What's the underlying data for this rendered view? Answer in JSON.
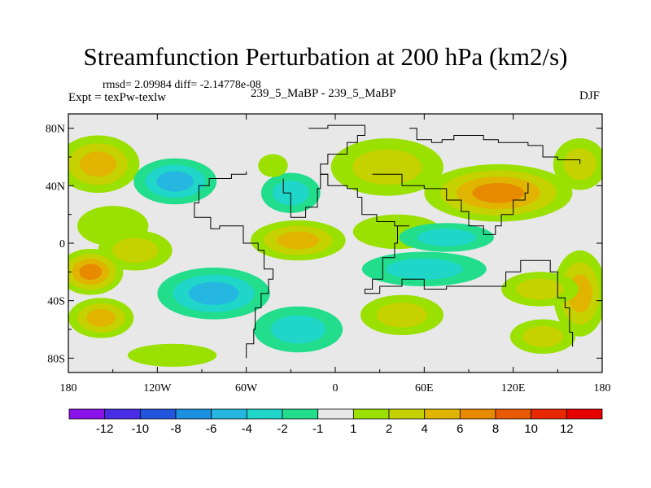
{
  "chart_data": {
    "type": "heatmap",
    "title": "Streamfunction Perturbation at 200 hPa (km2/s)",
    "subtitle_stats": "rmsd= 2.09984 diff= -2.14778e-08",
    "left_label": "Expt = texPw-texlw",
    "center_label": "239_5_MaBP - 239_5_MaBP",
    "right_label": "DJF",
    "x_ticks": [
      "180",
      "120W",
      "60W",
      "0",
      "60E",
      "120E",
      "180"
    ],
    "x_tick_values": [
      -180,
      -120,
      -60,
      0,
      60,
      120,
      180
    ],
    "y_ticks": [
      "80N",
      "40N",
      "0",
      "40S",
      "80S"
    ],
    "y_tick_values": [
      80,
      40,
      0,
      -40,
      -80
    ],
    "xlim": [
      -180,
      180
    ],
    "ylim": [
      -90,
      90
    ],
    "colorbar": {
      "labels": [
        "-12",
        "-10",
        "-8",
        "-6",
        "-4",
        "-2",
        "-1",
        "1",
        "2",
        "4",
        "6",
        "8",
        "10",
        "12"
      ],
      "colors": [
        "#8b12e8",
        "#4a2ee6",
        "#2255dd",
        "#1b8fe0",
        "#25b7e0",
        "#1fd6c8",
        "#22dd8c",
        "#e8e8e8",
        "#9ae000",
        "#c6d200",
        "#e0b400",
        "#e88a00",
        "#e85a00",
        "#e82800",
        "#e60000"
      ]
    },
    "field_blobs": [
      {
        "lon": -160,
        "lat": 55,
        "rx": 28,
        "ry": 20,
        "level": 3
      },
      {
        "lon": -108,
        "lat": 43,
        "rx": 28,
        "ry": 16,
        "level": -3
      },
      {
        "lon": -30,
        "lat": 35,
        "rx": 20,
        "ry": 14,
        "level": -2
      },
      {
        "lon": -42,
        "lat": 54,
        "rx": 10,
        "ry": 8,
        "level": 1
      },
      {
        "lon": 35,
        "lat": 53,
        "rx": 38,
        "ry": 20,
        "level": 2
      },
      {
        "lon": 110,
        "lat": 35,
        "rx": 50,
        "ry": 20,
        "level": 4
      },
      {
        "lon": 165,
        "lat": 55,
        "rx": 18,
        "ry": 18,
        "level": 2
      },
      {
        "lon": -150,
        "lat": 12,
        "rx": 24,
        "ry": 14,
        "level": 1
      },
      {
        "lon": -135,
        "lat": -5,
        "rx": 25,
        "ry": 14,
        "level": 2
      },
      {
        "lon": -25,
        "lat": 2,
        "rx": 32,
        "ry": 14,
        "level": 3
      },
      {
        "lon": 42,
        "lat": 8,
        "rx": 30,
        "ry": 12,
        "level": 1
      },
      {
        "lon": 60,
        "lat": -18,
        "rx": 42,
        "ry": 12,
        "level": -2
      },
      {
        "lon": 75,
        "lat": 4,
        "rx": 32,
        "ry": 10,
        "level": -2
      },
      {
        "lon": -165,
        "lat": -20,
        "rx": 22,
        "ry": 16,
        "level": 4
      },
      {
        "lon": -82,
        "lat": -35,
        "rx": 38,
        "ry": 18,
        "level": -3
      },
      {
        "lon": -25,
        "lat": -60,
        "rx": 30,
        "ry": 16,
        "level": -2
      },
      {
        "lon": -158,
        "lat": -52,
        "rx": 22,
        "ry": 14,
        "level": 3
      },
      {
        "lon": 45,
        "lat": -50,
        "rx": 28,
        "ry": 14,
        "level": 2
      },
      {
        "lon": 165,
        "lat": -35,
        "rx": 18,
        "ry": 30,
        "level": 3
      },
      {
        "lon": 138,
        "lat": -32,
        "rx": 26,
        "ry": 12,
        "level": 2
      },
      {
        "lon": 140,
        "lat": -65,
        "rx": 22,
        "ry": 12,
        "level": 2
      },
      {
        "lon": -110,
        "lat": -78,
        "rx": 30,
        "ry": 8,
        "level": 1
      }
    ],
    "outline_polylines": [
      [
        [
          -60,
          -80
        ],
        [
          -60,
          -70
        ],
        [
          -55,
          -60
        ],
        [
          -54,
          -45
        ],
        [
          -50,
          -35
        ],
        [
          -45,
          -25
        ],
        [
          -42,
          -18
        ],
        [
          -48,
          -5
        ],
        [
          -52,
          0
        ],
        [
          -62,
          12
        ],
        [
          -78,
          10
        ],
        [
          -84,
          18
        ],
        [
          -95,
          20
        ],
        [
          -95,
          28
        ],
        [
          -92,
          40
        ],
        [
          -85,
          45
        ],
        [
          -70,
          48
        ],
        [
          -60,
          50
        ]
      ],
      [
        [
          -18,
          80
        ],
        [
          -5,
          82
        ],
        [
          10,
          82
        ],
        [
          20,
          80
        ],
        [
          20,
          75
        ],
        [
          15,
          70
        ],
        [
          8,
          62
        ],
        [
          -5,
          55
        ],
        [
          -10,
          48
        ],
        [
          -5,
          40
        ],
        [
          8,
          38
        ],
        [
          15,
          32
        ],
        [
          18,
          20
        ],
        [
          28,
          15
        ],
        [
          40,
          12
        ],
        [
          50,
          12
        ],
        [
          42,
          0
        ],
        [
          40,
          -10
        ],
        [
          32,
          -25
        ],
        [
          25,
          -32
        ],
        [
          20,
          -35
        ],
        [
          30,
          -30
        ],
        [
          45,
          -25
        ],
        [
          55,
          -25
        ],
        [
          60,
          -32
        ],
        [
          75,
          -30
        ],
        [
          90,
          -30
        ],
        [
          105,
          -30
        ],
        [
          115,
          -20
        ],
        [
          125,
          -12
        ],
        [
          140,
          -12
        ],
        [
          145,
          -20
        ],
        [
          150,
          -38
        ],
        [
          155,
          -45
        ],
        [
          158,
          -62
        ],
        [
          160,
          -72
        ]
      ],
      [
        [
          50,
          80
        ],
        [
          55,
          72
        ],
        [
          65,
          70
        ],
        [
          72,
          72
        ],
        [
          80,
          75
        ],
        [
          90,
          75
        ],
        [
          100,
          72
        ],
        [
          110,
          70
        ],
        [
          122,
          70
        ],
        [
          130,
          68
        ],
        [
          140,
          60
        ],
        [
          150,
          58
        ],
        [
          165,
          55
        ]
      ],
      [
        [
          25,
          48
        ],
        [
          45,
          40
        ],
        [
          60,
          38
        ],
        [
          75,
          30
        ],
        [
          85,
          22
        ],
        [
          90,
          12
        ],
        [
          100,
          6
        ],
        [
          108,
          12
        ],
        [
          112,
          20
        ],
        [
          120,
          30
        ],
        [
          128,
          35
        ],
        [
          130,
          42
        ]
      ],
      [
        [
          -5,
          48
        ],
        [
          -10,
          38
        ],
        [
          -12,
          25
        ],
        [
          -20,
          18
        ],
        [
          -28,
          18
        ],
        [
          -30,
          35
        ],
        [
          -35,
          45
        ]
      ]
    ]
  }
}
